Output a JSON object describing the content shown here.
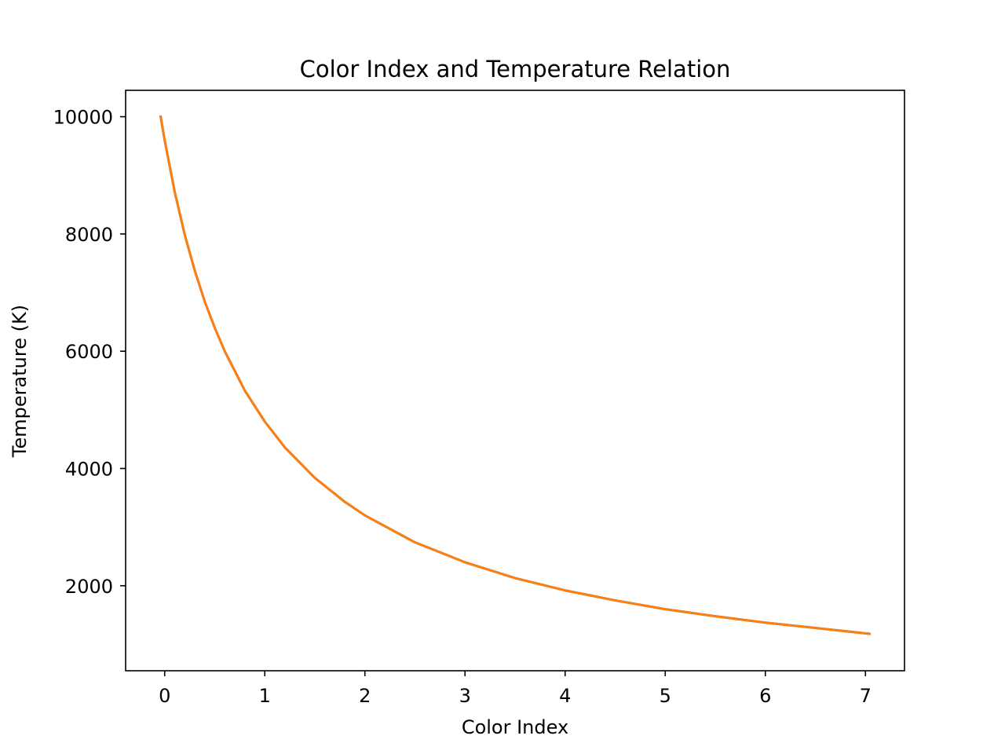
{
  "chart_data": {
    "type": "line",
    "title": "Color Index and Temperature Relation",
    "xlabel": "Color Index",
    "ylabel": "Temperature (K)",
    "xlim": [
      -0.39,
      7.39
    ],
    "ylim": [
      550,
      10450
    ],
    "xticks": [
      0,
      1,
      2,
      3,
      4,
      5,
      6,
      7
    ],
    "yticks": [
      2000,
      4000,
      6000,
      8000,
      10000
    ],
    "grid": false,
    "legend": "none",
    "colors": {
      "line": "#ff7f0e",
      "line_underlay": "#1f77b4",
      "axes": "#000000",
      "background": "#ffffff"
    },
    "series": [
      {
        "x": [
          -0.04,
          0.0,
          0.1,
          0.2,
          0.3,
          0.4,
          0.5,
          0.6,
          0.8,
          1.0,
          1.2,
          1.5,
          1.8,
          2.0,
          2.5,
          3.0,
          3.5,
          4.0,
          4.5,
          5.0,
          5.5,
          6.0,
          6.5,
          7.04
        ],
        "y": [
          10000,
          9600,
          8720,
          7990,
          7380,
          6850,
          6400,
          6000,
          5330,
          4800,
          4360,
          3840,
          3430,
          3200,
          2740,
          2400,
          2130,
          1920,
          1750,
          1600,
          1480,
          1370,
          1280,
          1180
        ]
      }
    ]
  }
}
